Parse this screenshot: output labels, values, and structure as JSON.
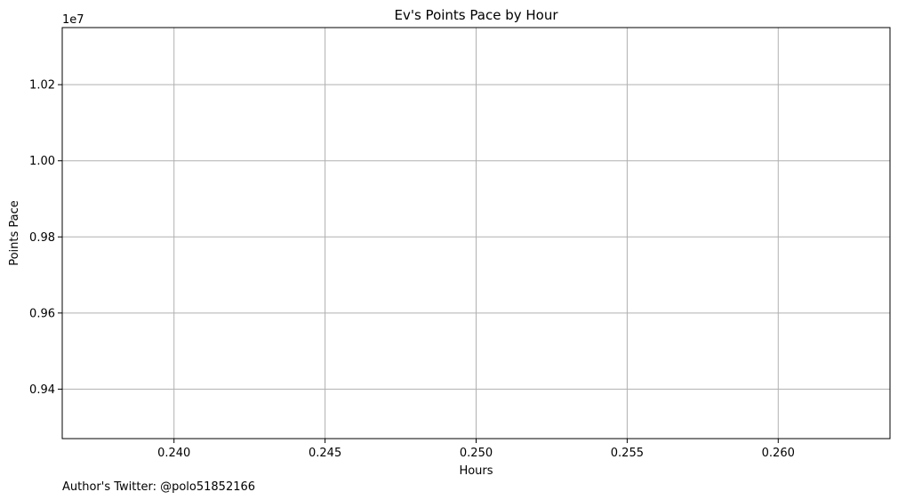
{
  "chart_data": {
    "type": "line",
    "title": "Ev's Points Pace by Hour",
    "xlabel": "Hours",
    "ylabel": "Points Pace",
    "y_offset_label": "1e7",
    "xlim": [
      0.2363,
      0.2637
    ],
    "ylim": [
      9.27,
      10.35
    ],
    "x_ticks": [
      0.24,
      0.245,
      0.25,
      0.255,
      0.26
    ],
    "x_tick_labels": [
      "0.240",
      "0.245",
      "0.250",
      "0.255",
      "0.260"
    ],
    "y_ticks": [
      9.4,
      9.6,
      9.8,
      10.0,
      10.2
    ],
    "y_tick_labels": [
      "0.94",
      "0.96",
      "0.98",
      "1.00",
      "1.02"
    ],
    "grid": true,
    "series": []
  },
  "footer": {
    "text": "Author's Twitter: @polo51852166"
  },
  "colors": {
    "grid": "#b0b0b0",
    "axes": "#000000"
  }
}
